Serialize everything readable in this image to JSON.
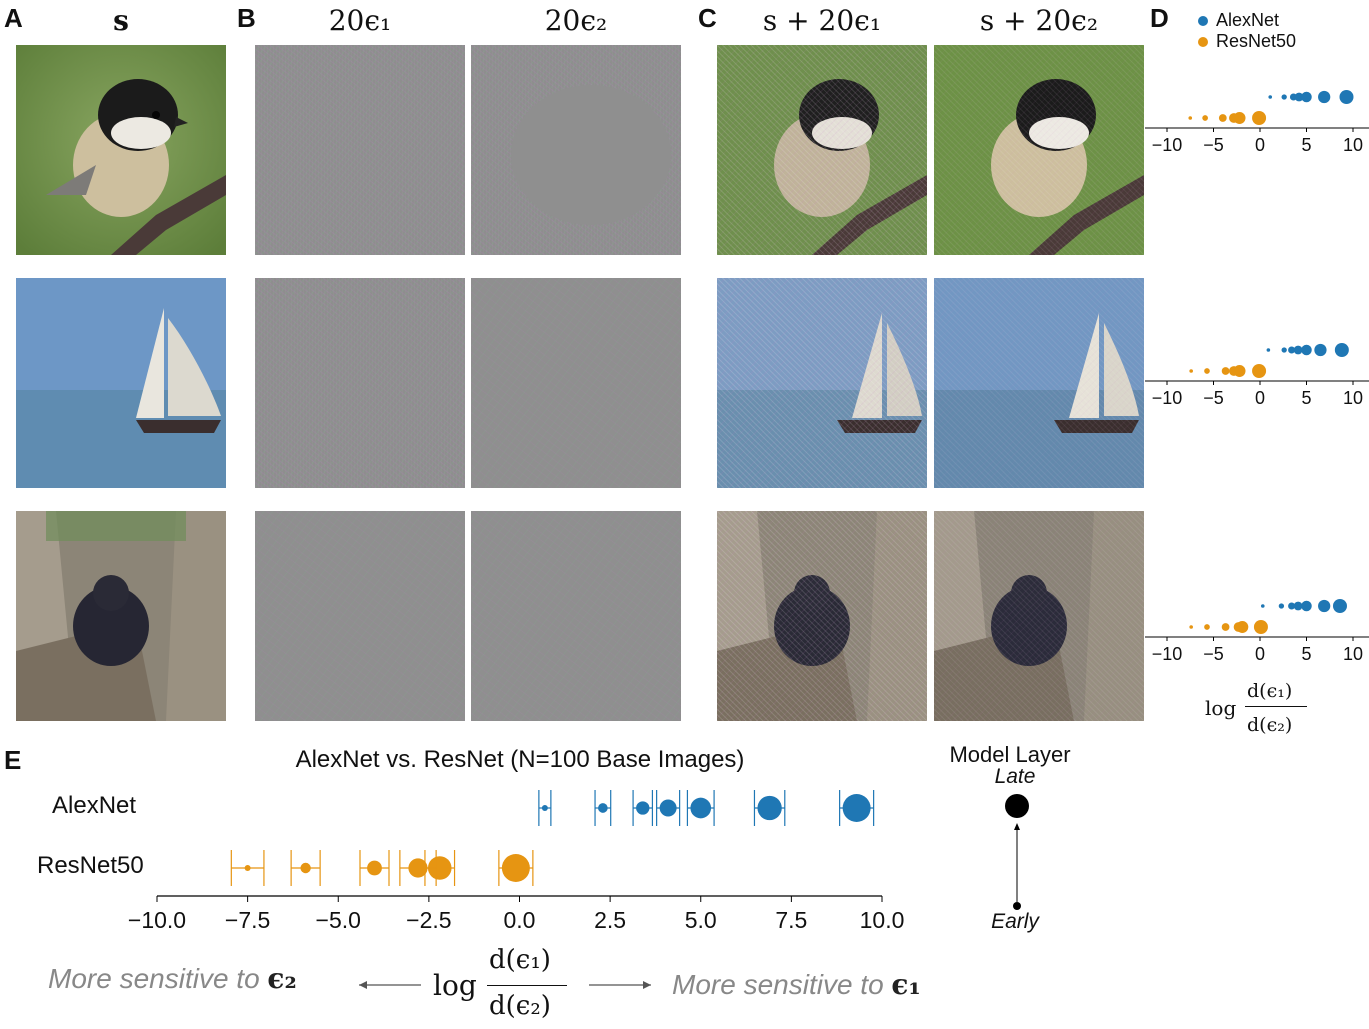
{
  "panels": {
    "a": "A",
    "b": "B",
    "c": "C",
    "d": "D",
    "e": "E"
  },
  "column_heads": {
    "a": "s",
    "b1": "20ϵ₁",
    "b2": "20ϵ₂",
    "c1": "s + 20ϵ₁",
    "c2": "s + 20ϵ₂"
  },
  "panel_d": {
    "legend": [
      "AlexNet",
      "ResNet50"
    ],
    "ticks": [
      "−10",
      "−5",
      "0",
      "5",
      "10"
    ],
    "xlabel_log": "log",
    "xlabel_num": "d(ϵ₁)",
    "xlabel_den": "d(ϵ₂)"
  },
  "colors": {
    "alexnet": "#1f77b4",
    "resnet": "#e69512"
  },
  "chart_data": [
    {
      "type": "scatter",
      "title": "AlexNet vs. ResNet (N=100 Base Images)",
      "xlabel": "log d(ϵ₁)/d(ϵ₂)",
      "xlim": [
        -10.0,
        10.0
      ],
      "x_ticks": [
        "−10.0",
        "−7.5",
        "−5.0",
        "−2.5",
        "0.0",
        "2.5",
        "5.0",
        "7.5",
        "10.0"
      ],
      "series": [
        {
          "name": "AlexNet",
          "x": [
            0.7,
            2.3,
            3.4,
            4.1,
            5.0,
            6.9,
            9.3
          ],
          "err": [
            0.15,
            0.2,
            0.25,
            0.3,
            0.35,
            0.35,
            0.35
          ],
          "layer_rank": [
            1,
            2,
            3,
            4,
            5,
            6,
            7
          ]
        },
        {
          "name": "ResNet50",
          "x": [
            -0.1,
            -2.2,
            -2.8,
            -4.0,
            -5.9,
            -7.5
          ],
          "err": [
            0.2,
            0.4,
            0.5,
            0.4,
            0.4,
            0.45
          ],
          "layer_rank": [
            1,
            2,
            3,
            4,
            5,
            6
          ]
        }
      ],
      "legend": {
        "title": "Model Layer",
        "late": "Late",
        "early": "Early"
      }
    }
  ],
  "panel_e": {
    "rows": [
      "AlexNet",
      "ResNet50"
    ],
    "left_note": "More sensitive to",
    "left_sym": "ϵ₂",
    "right_note": "More sensitive to",
    "right_sym": "ϵ₁",
    "center_log": "log",
    "center_num": "d(ϵ₁)",
    "center_den": "d(ϵ₂)"
  }
}
